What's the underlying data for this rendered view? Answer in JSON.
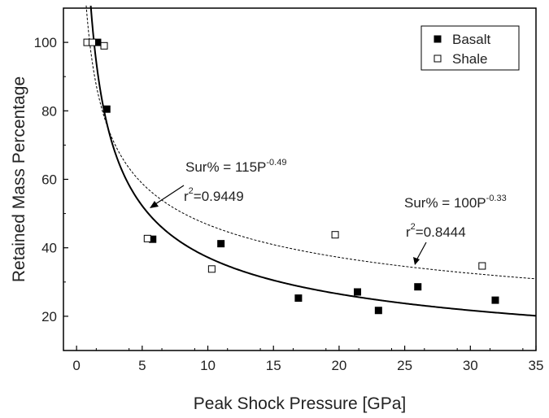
{
  "chart_data": {
    "type": "scatter",
    "xlabel": "Peak Shock Pressure [GPa]",
    "ylabel": "Retained Mass Percentage",
    "xlim": [
      -1,
      35
    ],
    "ylim": [
      10,
      110
    ],
    "x_ticks": [
      0,
      5,
      10,
      15,
      20,
      25,
      30,
      35
    ],
    "y_ticks": [
      20,
      40,
      60,
      80,
      100
    ],
    "grid": false,
    "legend_position": "top-right",
    "series": [
      {
        "name": "Basalt",
        "marker": "filled-square",
        "color": "#000000",
        "points": [
          {
            "x": 1.6,
            "y": 100
          },
          {
            "x": 2.3,
            "y": 80.5
          },
          {
            "x": 5.8,
            "y": 42.5
          },
          {
            "x": 11.0,
            "y": 41.2
          },
          {
            "x": 16.9,
            "y": 25.3
          },
          {
            "x": 21.4,
            "y": 27.1
          },
          {
            "x": 23.0,
            "y": 21.7
          },
          {
            "x": 26.0,
            "y": 28.6
          },
          {
            "x": 31.9,
            "y": 24.7
          }
        ]
      },
      {
        "name": "Shale",
        "marker": "open-square",
        "color": "#000000",
        "points": [
          {
            "x": 0.8,
            "y": 100
          },
          {
            "x": 1.2,
            "y": 100
          },
          {
            "x": 2.1,
            "y": 99
          },
          {
            "x": 5.4,
            "y": 42.7
          },
          {
            "x": 10.3,
            "y": 33.8
          },
          {
            "x": 19.7,
            "y": 43.8
          },
          {
            "x": 30.9,
            "y": 34.7
          }
        ]
      }
    ],
    "fits": [
      {
        "series": "Basalt",
        "style": "solid",
        "coefficient": 115,
        "exponent": -0.49,
        "equation_base": "Sur% = 115P",
        "equation_exp": "-0.49",
        "r2_prefix": "r",
        "r2_sup": "2",
        "r2_value": "=0.9449"
      },
      {
        "series": "Shale",
        "style": "dashed",
        "coefficient": 100,
        "exponent": -0.33,
        "equation_base": "Sur% = 100P",
        "equation_exp": "-0.33",
        "r2_prefix": "r",
        "r2_sup": "2",
        "r2_value": "=0.8444"
      }
    ]
  }
}
